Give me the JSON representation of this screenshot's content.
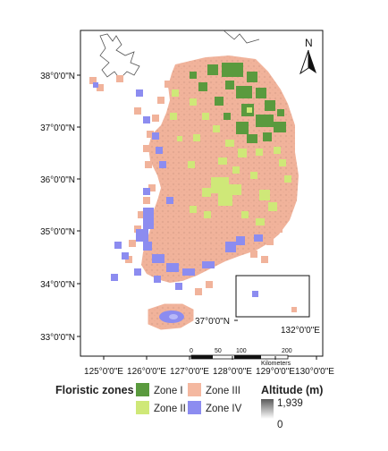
{
  "map": {
    "north_arrow": "N",
    "latitude_labels": [
      "38°0'0\"N",
      "37°0'0\"N",
      "36°0'0\"N",
      "35°0'0\"N",
      "34°0'0\"N",
      "33°0'0\"N"
    ],
    "longitude_labels": [
      "125°0'0\"E",
      "126°0'0\"E",
      "127°0'0\"E",
      "128°0'0\"E",
      "129°0'0\"E",
      "130°0'0\"E"
    ],
    "inset": {
      "lat_label": "37°0'0\"N",
      "lon_label": "132°0'0\"E"
    },
    "scale_bar": {
      "ticks": [
        "0",
        "50",
        "100",
        "200"
      ],
      "unit": "Kilometers"
    },
    "colors": {
      "zone1": "#5a9a3e",
      "zone2": "#cfe878",
      "zone3": "#f4b8a0",
      "zone4": "#8c8cf0",
      "sea": "#ffffff"
    }
  },
  "legend": {
    "zones_title": "Floristic zones",
    "zones": [
      {
        "label": "Zone I",
        "color": "#5a9a3e"
      },
      {
        "label": "Zone II",
        "color": "#cfe878"
      },
      {
        "label": "Zone III",
        "color": "#f4b8a0"
      },
      {
        "label": "Zone IV",
        "color": "#8c8cf0"
      }
    ],
    "altitude_title": "Altitude (m)",
    "altitude_max": "1,939",
    "altitude_min": "0"
  }
}
